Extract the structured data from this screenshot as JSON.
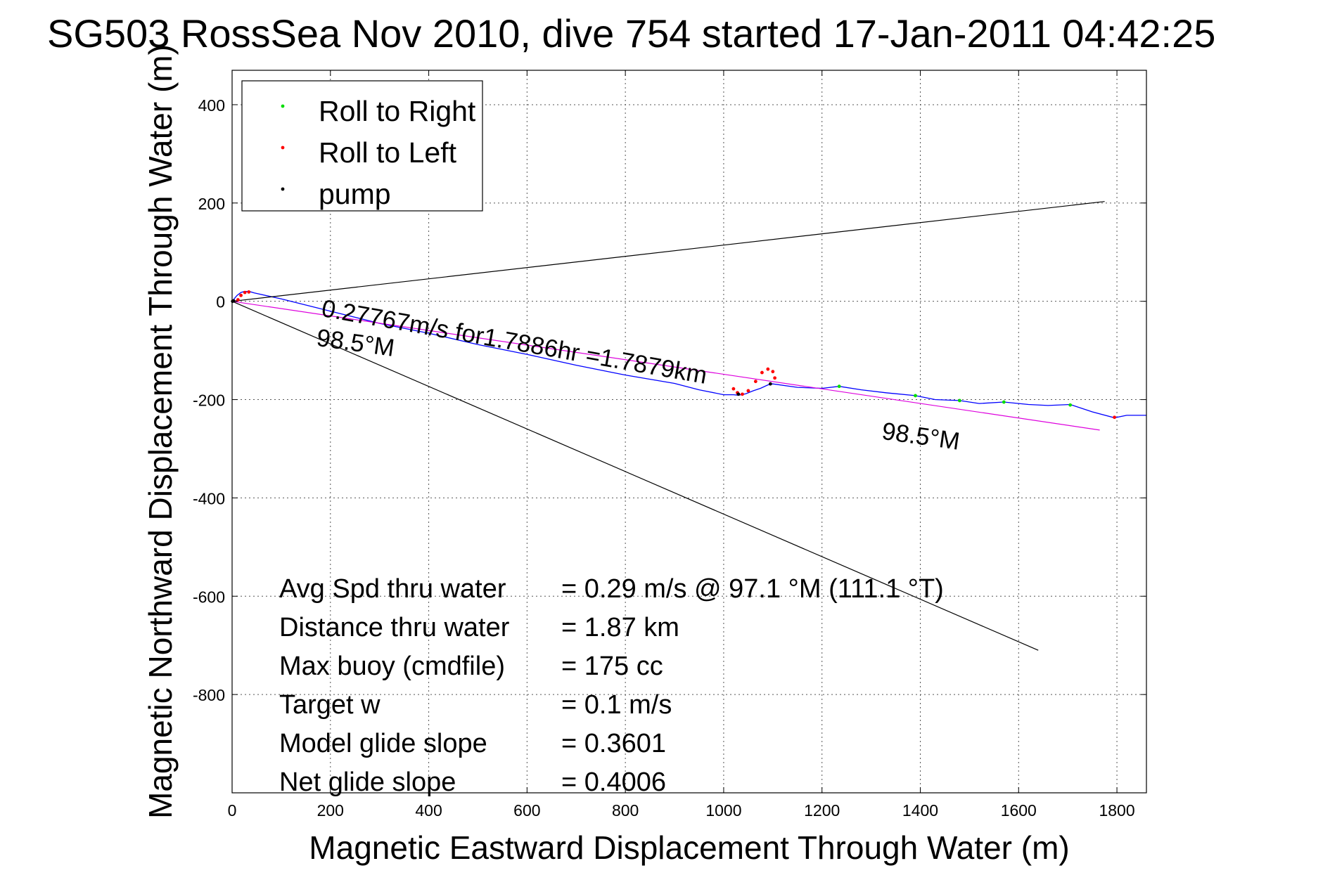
{
  "chart_data": {
    "type": "line",
    "title": "SG503 RossSea Nov 2010, dive 754 started 17-Jan-2011 04:42:25",
    "xlabel": "Magnetic Eastward Displacement Through Water (m)",
    "ylabel": "Magnetic Northward Displacement Through Water (m)",
    "xlim": [
      0,
      1860
    ],
    "ylim": [
      -1000,
      470
    ],
    "xticks": [
      0,
      200,
      400,
      600,
      800,
      1000,
      1200,
      1400,
      1600,
      1800
    ],
    "yticks": [
      -800,
      -600,
      -400,
      -200,
      0,
      200,
      400
    ],
    "grid": true,
    "legend_position": "top-left",
    "legend": [
      {
        "label": "Roll to Right",
        "color": "#00dd00"
      },
      {
        "label": "Roll to Left",
        "color": "#ff0000"
      },
      {
        "label": "pump",
        "color": "#000000"
      }
    ],
    "series": [
      {
        "style": "track",
        "color": "#0000ff",
        "x": [
          0,
          10,
          18,
          25,
          35,
          45,
          100,
          200,
          300,
          400,
          500,
          600,
          700,
          800,
          900,
          950,
          1000,
          1020,
          1030,
          1045,
          1060,
          1075,
          1090,
          1100,
          1150,
          1200,
          1235,
          1280,
          1330,
          1390,
          1430,
          1480,
          1520,
          1570,
          1620,
          1660,
          1705,
          1750,
          1795,
          1820,
          1860
        ],
        "y": [
          0,
          12,
          18,
          20,
          20,
          17,
          5,
          -20,
          -45,
          -65,
          -88,
          -108,
          -130,
          -150,
          -167,
          -180,
          -190,
          -190,
          -191,
          -188,
          -182,
          -177,
          -170,
          -168,
          -175,
          -177,
          -173,
          -180,
          -186,
          -192,
          -200,
          -202,
          -208,
          -205,
          -210,
          -212,
          -210,
          -225,
          -237,
          -232,
          -232
        ]
      },
      {
        "style": "heading",
        "color": "#dd00dd",
        "x": [
          0,
          1765
        ],
        "y": [
          0,
          -262
        ]
      },
      {
        "style": "envelope",
        "color": "#000000",
        "x": [
          0,
          1775
        ],
        "y": [
          0,
          203
        ]
      },
      {
        "style": "envelope",
        "color": "#000000",
        "x": [
          0,
          1640
        ],
        "y": [
          0,
          -710
        ]
      },
      {
        "style": "points",
        "color": "#ff0000",
        "name": "Roll to Left",
        "x": [
          12,
          18,
          26,
          34,
          1020,
          1028,
          1038,
          1050,
          1065,
          1078,
          1090,
          1100,
          1104,
          1795
        ],
        "y": [
          3,
          12,
          18,
          19,
          -178,
          -186,
          -189,
          -182,
          -163,
          -145,
          -138,
          -143,
          -156,
          -236
        ]
      },
      {
        "style": "points",
        "color": "#00dd00",
        "name": "Roll to Right",
        "x": [
          1235,
          1390,
          1480,
          1570,
          1705
        ],
        "y": [
          -173,
          -192,
          -202,
          -205,
          -211
        ]
      },
      {
        "style": "points",
        "color": "#000000",
        "name": "pump",
        "x": [
          1,
          3,
          1030,
          1095
        ],
        "y": [
          0,
          1,
          -189,
          -168
        ]
      }
    ],
    "annotations": [
      {
        "text": "0.27767m/s for1.7886hr =1.7879km",
        "x": 180,
        "y": -30,
        "angle": 10
      },
      {
        "text": "98.5°M",
        "x": 170,
        "y": -90,
        "angle": 8
      },
      {
        "text": "98.5°M",
        "x": 1320,
        "y": -280,
        "angle": 8
      }
    ],
    "stats": [
      {
        "label": "Avg Spd thru water",
        "value": "=  0.29 m/s @  97.1 °M (111.1 °T)"
      },
      {
        "label": "Distance thru water",
        "value": "=  1.87 km"
      },
      {
        "label": "Max buoy (cmdfile)",
        "value": "= 175 cc"
      },
      {
        "label": "Target w",
        "value": "= 0.1 m/s"
      },
      {
        "label": "Model glide slope",
        "value": "= 0.3601"
      },
      {
        "label": "Net glide slope",
        "value": "= 0.4006"
      }
    ]
  }
}
